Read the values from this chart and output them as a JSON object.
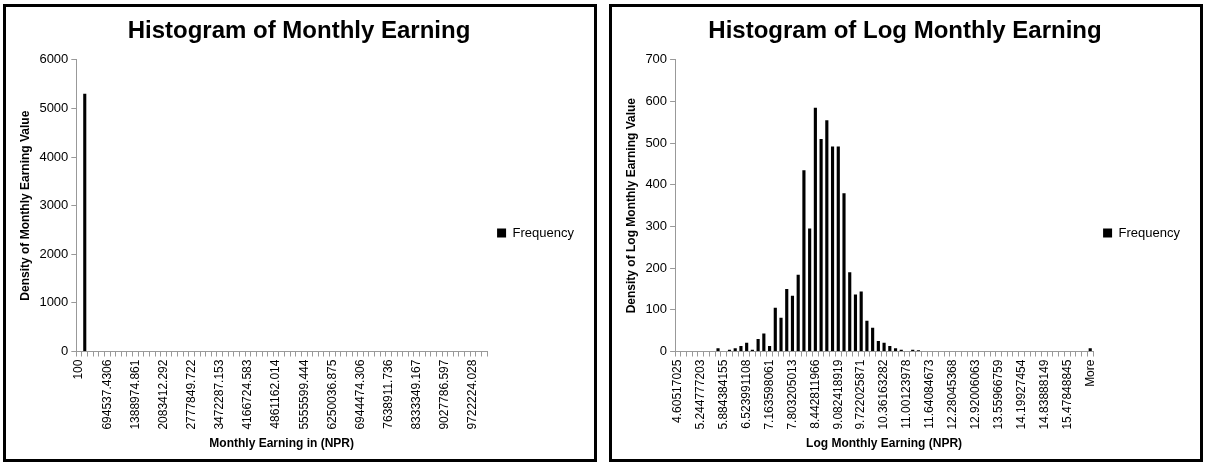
{
  "chart_data": [
    {
      "type": "bar",
      "title": "Histogram of Monthly Earning",
      "xlabel": "Monthly Earning in (NPR)",
      "ylabel": "Density of Monthly Earning Value",
      "legend": "right",
      "ylim": [
        0,
        6000
      ],
      "yticks": [
        0,
        1000,
        2000,
        3000,
        4000,
        5000,
        6000
      ],
      "categories": [
        "100",
        null,
        null,
        null,
        null,
        "694537.4306",
        null,
        null,
        null,
        null,
        "1388974.861",
        null,
        null,
        null,
        null,
        "2083412.292",
        null,
        null,
        null,
        null,
        "2777849.722",
        null,
        null,
        null,
        null,
        "3472287.153",
        null,
        null,
        null,
        null,
        "4166724.583",
        null,
        null,
        null,
        null,
        "4861162.014",
        null,
        null,
        null,
        null,
        "5555599.444",
        null,
        null,
        null,
        null,
        "6250036.875",
        null,
        null,
        null,
        null,
        "6944474.306",
        null,
        null,
        null,
        null,
        "7638911.736",
        null,
        null,
        null,
        null,
        "8333349.167",
        null,
        null,
        null,
        null,
        "9027786.597",
        null,
        null,
        null,
        null,
        "9722224.028",
        null,
        null
      ],
      "series": [
        {
          "name": "Frequency",
          "color": "#000000",
          "values": [
            0,
            5300,
            0,
            0,
            0,
            0,
            0,
            0,
            0,
            0,
            0,
            0,
            0,
            0,
            0,
            0,
            0,
            0,
            0,
            0,
            0,
            0,
            0,
            0,
            0,
            0,
            0,
            0,
            0,
            0,
            0,
            0,
            0,
            0,
            0,
            0,
            0,
            0,
            0,
            0,
            0,
            0,
            0,
            0,
            0,
            0,
            0,
            0,
            0,
            0,
            0,
            0,
            0,
            0,
            0,
            0,
            0,
            0,
            0,
            0,
            0,
            0,
            0,
            0,
            0,
            0,
            0,
            0,
            0,
            0,
            0,
            0,
            0
          ]
        }
      ]
    },
    {
      "type": "bar",
      "title": "Histogram of Log Monthly Earning",
      "xlabel": "Log Monthly Earning (NPR)",
      "ylabel": "Density of Log Monthly Earning Value",
      "legend": "right",
      "ylim": [
        0,
        700
      ],
      "yticks": [
        0,
        100,
        200,
        300,
        400,
        500,
        600,
        700
      ],
      "categories": [
        "4.60517025",
        null,
        null,
        null,
        "5.244777203",
        null,
        null,
        null,
        "5.884384155",
        null,
        null,
        null,
        "6.523991108",
        null,
        null,
        null,
        "7.163598061",
        null,
        null,
        null,
        "7.803205013",
        null,
        null,
        null,
        "8.442811966",
        null,
        null,
        null,
        "9.082418919",
        null,
        null,
        null,
        "9.722025871",
        null,
        null,
        null,
        "10.36163282",
        null,
        null,
        null,
        "11.00123978",
        null,
        null,
        null,
        "11.64084673",
        null,
        null,
        null,
        "12.28045368",
        null,
        null,
        null,
        "12.92006063",
        null,
        null,
        null,
        "13.55966759",
        null,
        null,
        null,
        "14.19927454",
        null,
        null,
        null,
        "14.83888149",
        null,
        null,
        null,
        "15.47848845",
        null,
        null,
        null,
        "More"
      ],
      "series": [
        {
          "name": "Frequency",
          "color": "#000000",
          "values": [
            0,
            0,
            0,
            0,
            0,
            0,
            0,
            8,
            0,
            4,
            8,
            13,
            21,
            4,
            30,
            43,
            13,
            105,
            81,
            150,
            134,
            184,
            435,
            295,
            585,
            510,
            555,
            492,
            492,
            380,
            190,
            137,
            144,
            74,
            57,
            25,
            21,
            13,
            8,
            4,
            0,
            4,
            3,
            0,
            0,
            0,
            0,
            0,
            0,
            0,
            0,
            0,
            0,
            0,
            0,
            0,
            0,
            0,
            0,
            0,
            0,
            0,
            0,
            0,
            0,
            0,
            0,
            0,
            0,
            0,
            0,
            0,
            8
          ]
        }
      ]
    }
  ]
}
